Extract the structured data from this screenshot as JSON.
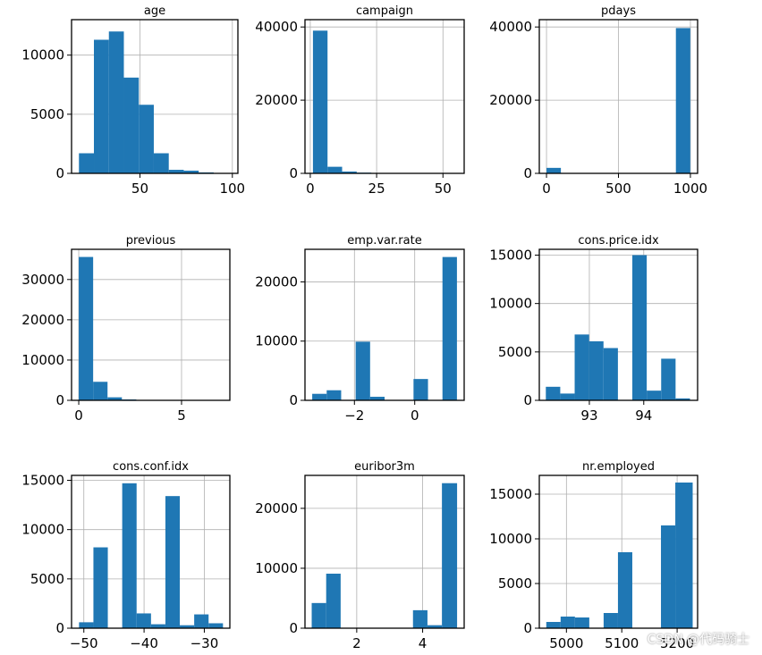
{
  "figure_title": "",
  "colors": {
    "bar": "#1f77b4",
    "grid": "#b0b0b0",
    "axis": "#000000",
    "background": "#ffffff"
  },
  "watermark": "CSDN @代码骑士",
  "chart_data": [
    {
      "type": "bar",
      "title": "age",
      "xlim": [
        13,
        103
      ],
      "ylim": [
        0,
        13000
      ],
      "xticks": [
        {
          "value": 50,
          "label": "50"
        },
        {
          "value": 100,
          "label": "100"
        }
      ],
      "yticks": [
        {
          "value": 0,
          "label": "0"
        },
        {
          "value": 5000,
          "label": "5000"
        },
        {
          "value": 10000,
          "label": "10000"
        }
      ],
      "bins": [
        [
          17,
          25.1,
          1700
        ],
        [
          25.1,
          33.2,
          11300
        ],
        [
          33.2,
          41.3,
          12000
        ],
        [
          41.3,
          49.4,
          8100
        ],
        [
          49.4,
          57.5,
          5800
        ],
        [
          57.5,
          65.6,
          1700
        ],
        [
          65.6,
          73.7,
          300
        ],
        [
          73.7,
          81.8,
          230
        ],
        [
          81.8,
          89.9,
          80
        ],
        [
          89.9,
          98,
          20
        ]
      ]
    },
    {
      "type": "bar",
      "title": "campaign",
      "xlim": [
        -2,
        58
      ],
      "ylim": [
        0,
        42000
      ],
      "xticks": [
        {
          "value": 0,
          "label": "0"
        },
        {
          "value": 25,
          "label": "25"
        },
        {
          "value": 50,
          "label": "50"
        }
      ],
      "yticks": [
        {
          "value": 0,
          "label": "0"
        },
        {
          "value": 20000,
          "label": "20000"
        },
        {
          "value": 40000,
          "label": "40000"
        }
      ],
      "bins": [
        [
          1,
          6.5,
          39000
        ],
        [
          6.5,
          12,
          1800
        ],
        [
          12,
          17.5,
          500
        ],
        [
          17.5,
          23,
          200
        ],
        [
          23,
          28.5,
          100
        ],
        [
          28.5,
          34,
          50
        ],
        [
          34,
          39.5,
          30
        ],
        [
          39.5,
          45,
          10
        ],
        [
          45,
          50.5,
          5
        ],
        [
          50.5,
          56,
          5
        ]
      ]
    },
    {
      "type": "bar",
      "title": "pdays",
      "xlim": [
        -50,
        1050
      ],
      "ylim": [
        0,
        42000
      ],
      "xticks": [
        {
          "value": 0,
          "label": "0"
        },
        {
          "value": 500,
          "label": "500"
        },
        {
          "value": 1000,
          "label": "1000"
        }
      ],
      "yticks": [
        {
          "value": 0,
          "label": "0"
        },
        {
          "value": 20000,
          "label": "20000"
        },
        {
          "value": 40000,
          "label": "40000"
        }
      ],
      "bins": [
        [
          0,
          99.9,
          1500
        ],
        [
          99.9,
          199.8,
          0
        ],
        [
          199.8,
          299.7,
          0
        ],
        [
          299.7,
          399.6,
          0
        ],
        [
          399.6,
          499.5,
          0
        ],
        [
          499.5,
          599.4,
          0
        ],
        [
          599.4,
          699.3,
          0
        ],
        [
          699.3,
          799.2,
          0
        ],
        [
          799.2,
          899.1,
          0
        ],
        [
          899.1,
          999,
          39700
        ]
      ]
    },
    {
      "type": "bar",
      "title": "previous",
      "xlim": [
        -0.35,
        7.35
      ],
      "ylim": [
        0,
        37500
      ],
      "xticks": [
        {
          "value": 0,
          "label": "0"
        },
        {
          "value": 5,
          "label": "5"
        }
      ],
      "yticks": [
        {
          "value": 0,
          "label": "0"
        },
        {
          "value": 10000,
          "label": "10000"
        },
        {
          "value": 20000,
          "label": "20000"
        },
        {
          "value": 30000,
          "label": "30000"
        }
      ],
      "bins": [
        [
          0,
          0.7,
          35600
        ],
        [
          0.7,
          1.4,
          4600
        ],
        [
          1.4,
          2.1,
          750
        ],
        [
          2.1,
          2.8,
          220
        ],
        [
          2.8,
          3.5,
          70
        ],
        [
          3.5,
          4.2,
          20
        ],
        [
          4.2,
          4.9,
          7
        ],
        [
          4.9,
          5.6,
          5
        ],
        [
          5.6,
          6.3,
          1
        ],
        [
          6.3,
          7,
          1
        ]
      ]
    },
    {
      "type": "bar",
      "title": "emp.var.rate",
      "xlim": [
        -3.64,
        1.64
      ],
      "ylim": [
        0,
        25500
      ],
      "xticks": [
        {
          "value": -2,
          "label": "−2"
        },
        {
          "value": 0,
          "label": "0"
        }
      ],
      "yticks": [
        {
          "value": 0,
          "label": "0"
        },
        {
          "value": 10000,
          "label": "10000"
        },
        {
          "value": 20000,
          "label": "20000"
        }
      ],
      "bins": [
        [
          -3.4,
          -2.92,
          1100
        ],
        [
          -2.92,
          -2.44,
          1700
        ],
        [
          -2.44,
          -1.96,
          0
        ],
        [
          -2.44,
          -1.96,
          0
        ],
        [
          -1.96,
          -1.48,
          9900
        ],
        [
          -1.48,
          -1.0,
          600
        ],
        [
          -1.0,
          -0.52,
          0
        ],
        [
          -0.52,
          -0.04,
          0
        ],
        [
          -0.04,
          0.44,
          3600
        ],
        [
          0.44,
          0.92,
          0
        ],
        [
          0.92,
          1.4,
          24200
        ]
      ]
    },
    {
      "type": "bar",
      "title": "cons.price.idx",
      "xlim": [
        92.08,
        94.99
      ],
      "ylim": [
        0,
        15600
      ],
      "xticks": [
        {
          "value": 93,
          "label": "93"
        },
        {
          "value": 94,
          "label": "94"
        }
      ],
      "yticks": [
        {
          "value": 0,
          "label": "0"
        },
        {
          "value": 5000,
          "label": "5000"
        },
        {
          "value": 10000,
          "label": "10000"
        },
        {
          "value": 15000,
          "label": "15000"
        }
      ],
      "bins": [
        [
          92.2,
          92.465,
          1400
        ],
        [
          92.465,
          92.73,
          700
        ],
        [
          92.73,
          92.995,
          6800
        ],
        [
          92.995,
          93.26,
          6100
        ],
        [
          93.26,
          93.525,
          5400
        ],
        [
          93.525,
          93.79,
          0
        ],
        [
          93.79,
          94.055,
          15000
        ],
        [
          94.055,
          94.32,
          1000
        ],
        [
          94.32,
          94.585,
          4300
        ],
        [
          94.585,
          94.85,
          200
        ]
      ]
    },
    {
      "type": "bar",
      "title": "cons.conf.idx",
      "xlim": [
        -52.04,
        -25.76
      ],
      "ylim": [
        0,
        15500
      ],
      "xticks": [
        {
          "value": -50,
          "label": "−50"
        },
        {
          "value": -40,
          "label": "−40"
        },
        {
          "value": -30,
          "label": "−30"
        }
      ],
      "yticks": [
        {
          "value": 0,
          "label": "0"
        },
        {
          "value": 5000,
          "label": "5000"
        },
        {
          "value": 10000,
          "label": "10000"
        },
        {
          "value": 15000,
          "label": "15000"
        }
      ],
      "bins": [
        [
          -50.8,
          -48.41,
          600
        ],
        [
          -48.41,
          -46.02,
          8200
        ],
        [
          -46.02,
          -43.63,
          0
        ],
        [
          -43.63,
          -41.24,
          14700
        ],
        [
          -41.24,
          -38.85,
          1500
        ],
        [
          -38.85,
          -36.46,
          400
        ],
        [
          -36.46,
          -34.07,
          13400
        ],
        [
          -34.07,
          -31.68,
          300
        ],
        [
          -31.68,
          -29.29,
          1400
        ],
        [
          -29.29,
          -26.9,
          500
        ]
      ]
    },
    {
      "type": "bar",
      "title": "euribor3m",
      "xlim": [
        0.43,
        5.26
      ],
      "ylim": [
        0,
        25500
      ],
      "xticks": [
        {
          "value": 2,
          "label": "2"
        },
        {
          "value": 4,
          "label": "4"
        }
      ],
      "yticks": [
        {
          "value": 0,
          "label": "0"
        },
        {
          "value": 10000,
          "label": "10000"
        },
        {
          "value": 20000,
          "label": "20000"
        }
      ],
      "bins": [
        [
          0.634,
          1.073,
          4200
        ],
        [
          1.073,
          1.512,
          9100
        ],
        [
          1.512,
          1.951,
          0
        ],
        [
          1.951,
          2.39,
          0
        ],
        [
          2.39,
          2.829,
          0
        ],
        [
          2.829,
          3.268,
          0
        ],
        [
          3.268,
          3.707,
          0
        ],
        [
          3.707,
          4.146,
          3000
        ],
        [
          4.146,
          4.585,
          500
        ],
        [
          4.585,
          5.045,
          24200
        ]
      ]
    },
    {
      "type": "bar",
      "title": "nr.employed",
      "xlim": [
        4951,
        5237
      ],
      "ylim": [
        0,
        17100
      ],
      "xticks": [
        {
          "value": 5000,
          "label": "5000"
        },
        {
          "value": 5100,
          "label": "5100"
        },
        {
          "value": 5200,
          "label": "5200"
        }
      ],
      "yticks": [
        {
          "value": 0,
          "label": "0"
        },
        {
          "value": 5000,
          "label": "5000"
        },
        {
          "value": 10000,
          "label": "10000"
        },
        {
          "value": 15000,
          "label": "15000"
        }
      ],
      "bins": [
        [
          4963.6,
          4989.5,
          700
        ],
        [
          4989.5,
          5015.4,
          1300
        ],
        [
          5015.4,
          5041.3,
          1200
        ],
        [
          5041.3,
          5067.2,
          0
        ],
        [
          5067.2,
          5093.1,
          1700
        ],
        [
          5093.1,
          5119,
          8500
        ],
        [
          5119,
          5144.9,
          0
        ],
        [
          5144.9,
          5170.8,
          0
        ],
        [
          5170.8,
          5196.7,
          11500
        ],
        [
          5196.7,
          5228.1,
          16300
        ]
      ]
    }
  ]
}
